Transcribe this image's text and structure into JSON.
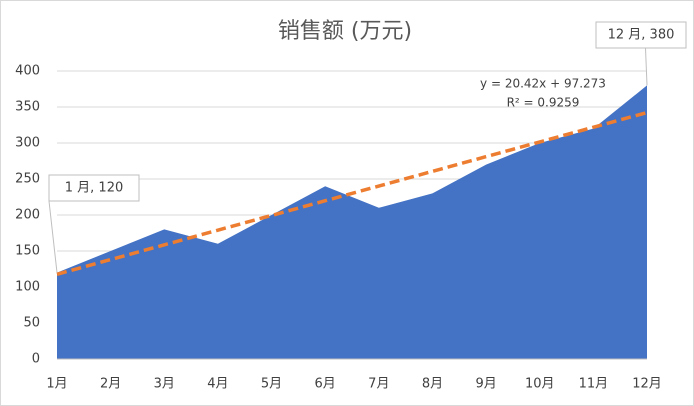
{
  "chart_data": {
    "type": "area",
    "title": "销售额 (万元)",
    "categories": [
      "1月",
      "2月",
      "3月",
      "4月",
      "5月",
      "6月",
      "7月",
      "8月",
      "9月",
      "10月",
      "11月",
      "12月"
    ],
    "values": [
      120,
      150,
      180,
      160,
      200,
      240,
      210,
      230,
      270,
      300,
      320,
      380
    ],
    "value_labels": [
      "1 月, 120",
      null,
      null,
      null,
      null,
      null,
      null,
      null,
      null,
      null,
      null,
      "12 月, 380"
    ],
    "color": "#4472c4",
    "ylim": [
      0,
      400
    ],
    "yticks": [
      0,
      50,
      100,
      150,
      200,
      250,
      300,
      350,
      400
    ],
    "grid": true,
    "trendline": {
      "slope": 20.42,
      "intercept": 97.273,
      "color": "#ed7d31",
      "label": "y = 20.42x + 97.273",
      "r2_label": "R² = 0.9259"
    }
  }
}
